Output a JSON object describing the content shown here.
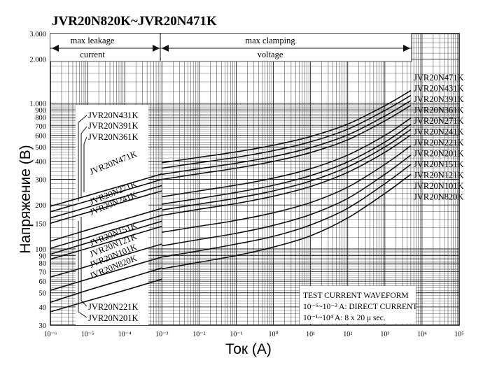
{
  "chart_data": {
    "type": "line",
    "title": "JVR20N820K~JVR20N471K",
    "xlabel": "Ток (А)",
    "ylabel": "Напряжение (В)",
    "x_scale": "log",
    "y_scale": "log",
    "xlim": [
      1e-06,
      100000.0
    ],
    "ylim": [
      30,
      3000
    ],
    "x_ticks": [
      "10⁻⁶",
      "10⁻⁵",
      "10⁻⁴",
      "10⁻³",
      "10⁻²",
      "10⁻¹",
      "10⁰",
      "10¹",
      "10²",
      "10³",
      "10⁴",
      "10⁵"
    ],
    "y_ticks": [
      {
        "v": 30,
        "label": "30"
      },
      {
        "v": 40,
        "label": "40"
      },
      {
        "v": 50,
        "label": "50"
      },
      {
        "v": 60,
        "label": "60"
      },
      {
        "v": 70,
        "label": "70"
      },
      {
        "v": 80,
        "label": "80"
      },
      {
        "v": 90,
        "label": "90"
      },
      {
        "v": 100,
        "label": "100"
      },
      {
        "v": 150,
        "label": "150"
      },
      {
        "v": 200,
        "label": "200"
      },
      {
        "v": 300,
        "label": "300"
      },
      {
        "v": 400,
        "label": "400"
      },
      {
        "v": 500,
        "label": "500"
      },
      {
        "v": 600,
        "label": "600"
      },
      {
        "v": 700,
        "label": "700"
      },
      {
        "v": 800,
        "label": "800"
      },
      {
        "v": 900,
        "label": "900"
      },
      {
        "v": 1000,
        "label": "1.000"
      },
      {
        "v": 2000,
        "label": "2.000"
      },
      {
        "v": 3000,
        "label": "3.000"
      }
    ],
    "grid": true,
    "regions": [
      {
        "line1": "max leakage",
        "line2": "current"
      },
      {
        "line1": "max clamping",
        "line2": "voltage"
      }
    ],
    "series": [
      {
        "name": "JVR20N820K",
        "leakage": [
          [
            1e-06,
            37
          ],
          [
            1e-05,
            44
          ],
          [
            0.0001,
            52
          ],
          [
            0.001,
            62
          ]
        ],
        "clamping": [
          [
            0.001,
            73
          ],
          [
            0.01,
            81
          ],
          [
            0.1,
            90
          ],
          [
            1,
            103
          ],
          [
            10,
            123
          ],
          [
            100,
            163
          ],
          [
            1000,
            240
          ],
          [
            5000,
            325
          ]
        ]
      },
      {
        "name": "JVR20N101K",
        "leakage": [
          [
            1e-06,
            43
          ],
          [
            1e-05,
            52
          ],
          [
            0.0001,
            62
          ],
          [
            0.001,
            74
          ]
        ],
        "clamping": [
          [
            0.001,
            88
          ],
          [
            0.01,
            97
          ],
          [
            0.1,
            108
          ],
          [
            1,
            122
          ],
          [
            10,
            146
          ],
          [
            100,
            190
          ],
          [
            1000,
            280
          ],
          [
            5000,
            380
          ]
        ]
      },
      {
        "name": "JVR20N121K",
        "leakage": [
          [
            1e-06,
            52
          ],
          [
            1e-05,
            62
          ],
          [
            0.0001,
            74
          ],
          [
            0.001,
            88
          ]
        ],
        "clamping": [
          [
            0.001,
            105
          ],
          [
            0.01,
            116
          ],
          [
            0.1,
            128
          ],
          [
            1,
            145
          ],
          [
            10,
            172
          ],
          [
            100,
            222
          ],
          [
            1000,
            325
          ],
          [
            5000,
            440
          ]
        ]
      },
      {
        "name": "JVR20N151K",
        "leakage": [
          [
            1e-06,
            64
          ],
          [
            1e-05,
            76
          ],
          [
            0.0001,
            91
          ],
          [
            0.001,
            108
          ]
        ],
        "clamping": [
          [
            0.001,
            130
          ],
          [
            0.01,
            143
          ],
          [
            0.1,
            157
          ],
          [
            1,
            177
          ],
          [
            10,
            208
          ],
          [
            100,
            265
          ],
          [
            1000,
            380
          ],
          [
            5000,
            510
          ]
        ]
      },
      {
        "name": "JVR20N201K",
        "leakage": [
          [
            1e-06,
            85
          ],
          [
            1e-05,
            101
          ],
          [
            0.0001,
            120
          ],
          [
            0.001,
            143
          ]
        ],
        "clamping": [
          [
            0.001,
            170
          ],
          [
            0.01,
            187
          ],
          [
            0.1,
            205
          ],
          [
            1,
            230
          ],
          [
            10,
            268
          ],
          [
            100,
            335
          ],
          [
            1000,
            460
          ],
          [
            5000,
            605
          ]
        ]
      },
      {
        "name": "JVR20N221K",
        "leakage": [
          [
            1e-06,
            92
          ],
          [
            1e-05,
            110
          ],
          [
            0.0001,
            130
          ],
          [
            0.001,
            155
          ]
        ],
        "clamping": [
          [
            0.001,
            185
          ],
          [
            0.01,
            203
          ],
          [
            0.1,
            223
          ],
          [
            1,
            250
          ],
          [
            10,
            292
          ],
          [
            100,
            365
          ],
          [
            1000,
            500
          ],
          [
            5000,
            660
          ]
        ]
      },
      {
        "name": "JVR20N241K",
        "leakage": [
          [
            1e-06,
            101
          ],
          [
            1e-05,
            120
          ],
          [
            0.0001,
            143
          ],
          [
            0.001,
            170
          ]
        ],
        "clamping": [
          [
            0.001,
            203
          ],
          [
            0.01,
            222
          ],
          [
            0.1,
            244
          ],
          [
            1,
            273
          ],
          [
            10,
            318
          ],
          [
            100,
            395
          ],
          [
            1000,
            540
          ],
          [
            5000,
            715
          ]
        ]
      },
      {
        "name": "JVR20N271K",
        "leakage": [
          [
            1e-06,
            113
          ],
          [
            1e-05,
            135
          ],
          [
            0.0001,
            160
          ],
          [
            0.001,
            190
          ]
        ],
        "clamping": [
          [
            0.001,
            228
          ],
          [
            0.01,
            250
          ],
          [
            0.1,
            274
          ],
          [
            1,
            306
          ],
          [
            10,
            355
          ],
          [
            100,
            440
          ],
          [
            1000,
            600
          ],
          [
            5000,
            790
          ]
        ]
      },
      {
        "name": "JVR20N361K",
        "leakage": [
          [
            1e-06,
            150
          ],
          [
            1e-05,
            178
          ],
          [
            0.0001,
            211
          ],
          [
            0.001,
            250
          ]
        ],
        "clamping": [
          [
            0.001,
            300
          ],
          [
            0.01,
            328
          ],
          [
            0.1,
            358
          ],
          [
            1,
            398
          ],
          [
            10,
            458
          ],
          [
            100,
            560
          ],
          [
            1000,
            755
          ],
          [
            5000,
            965
          ]
        ]
      },
      {
        "name": "JVR20N391K",
        "leakage": [
          [
            1e-06,
            163
          ],
          [
            1e-05,
            193
          ],
          [
            0.0001,
            229
          ],
          [
            0.001,
            272
          ]
        ],
        "clamping": [
          [
            0.001,
            325
          ],
          [
            0.01,
            355
          ],
          [
            0.1,
            387
          ],
          [
            1,
            430
          ],
          [
            10,
            495
          ],
          [
            100,
            605
          ],
          [
            1000,
            815
          ],
          [
            5000,
            1040
          ]
        ]
      },
      {
        "name": "JVR20N431K",
        "leakage": [
          [
            1e-06,
            180
          ],
          [
            1e-05,
            213
          ],
          [
            0.0001,
            252
          ],
          [
            0.001,
            300
          ]
        ],
        "clamping": [
          [
            0.001,
            358
          ],
          [
            0.01,
            390
          ],
          [
            0.1,
            425
          ],
          [
            1,
            472
          ],
          [
            10,
            543
          ],
          [
            100,
            662
          ],
          [
            1000,
            890
          ],
          [
            5000,
            1130
          ]
        ]
      },
      {
        "name": "JVR20N471K",
        "leakage": [
          [
            1e-06,
            196
          ],
          [
            1e-05,
            232
          ],
          [
            0.0001,
            275
          ],
          [
            0.001,
            327
          ]
        ],
        "clamping": [
          [
            0.001,
            390
          ],
          [
            0.01,
            425
          ],
          [
            0.1,
            463
          ],
          [
            1,
            514
          ],
          [
            10,
            590
          ],
          [
            100,
            718
          ],
          [
            1000,
            960
          ],
          [
            5000,
            1220
          ]
        ]
      }
    ],
    "left_labels": {
      "top": [
        "JVR20N431K",
        "JVR20N391K",
        "JVR20N361K"
      ],
      "diagonal": [
        "JVR20N471K",
        "JVR20N271K",
        "JVR20N241K",
        "JVR20N151K",
        "JVR20N121K",
        "JVR20N101K",
        "JVR20N820K"
      ],
      "bottom": [
        "JVR20N221K",
        "JVR20N201K"
      ]
    },
    "right_labels": [
      "JVR20N471K",
      "JVR20N431K",
      "JVR20N391K",
      "JVR20N361K",
      "JVR20N271K",
      "JVR20N241K",
      "JVR20N221K",
      "JVR20N201K",
      "JVR20N151K",
      "JVR20N121K",
      "JVR20N101K",
      "JVR20N820K"
    ],
    "annotation": {
      "line1": "TEST CURRENT WAVEFORM",
      "line2": "10⁻⁶~10⁻³ A: DIRECT CURRENT",
      "line3": "10⁻¹~10⁴  A: 8 x 20  μ sec."
    }
  }
}
